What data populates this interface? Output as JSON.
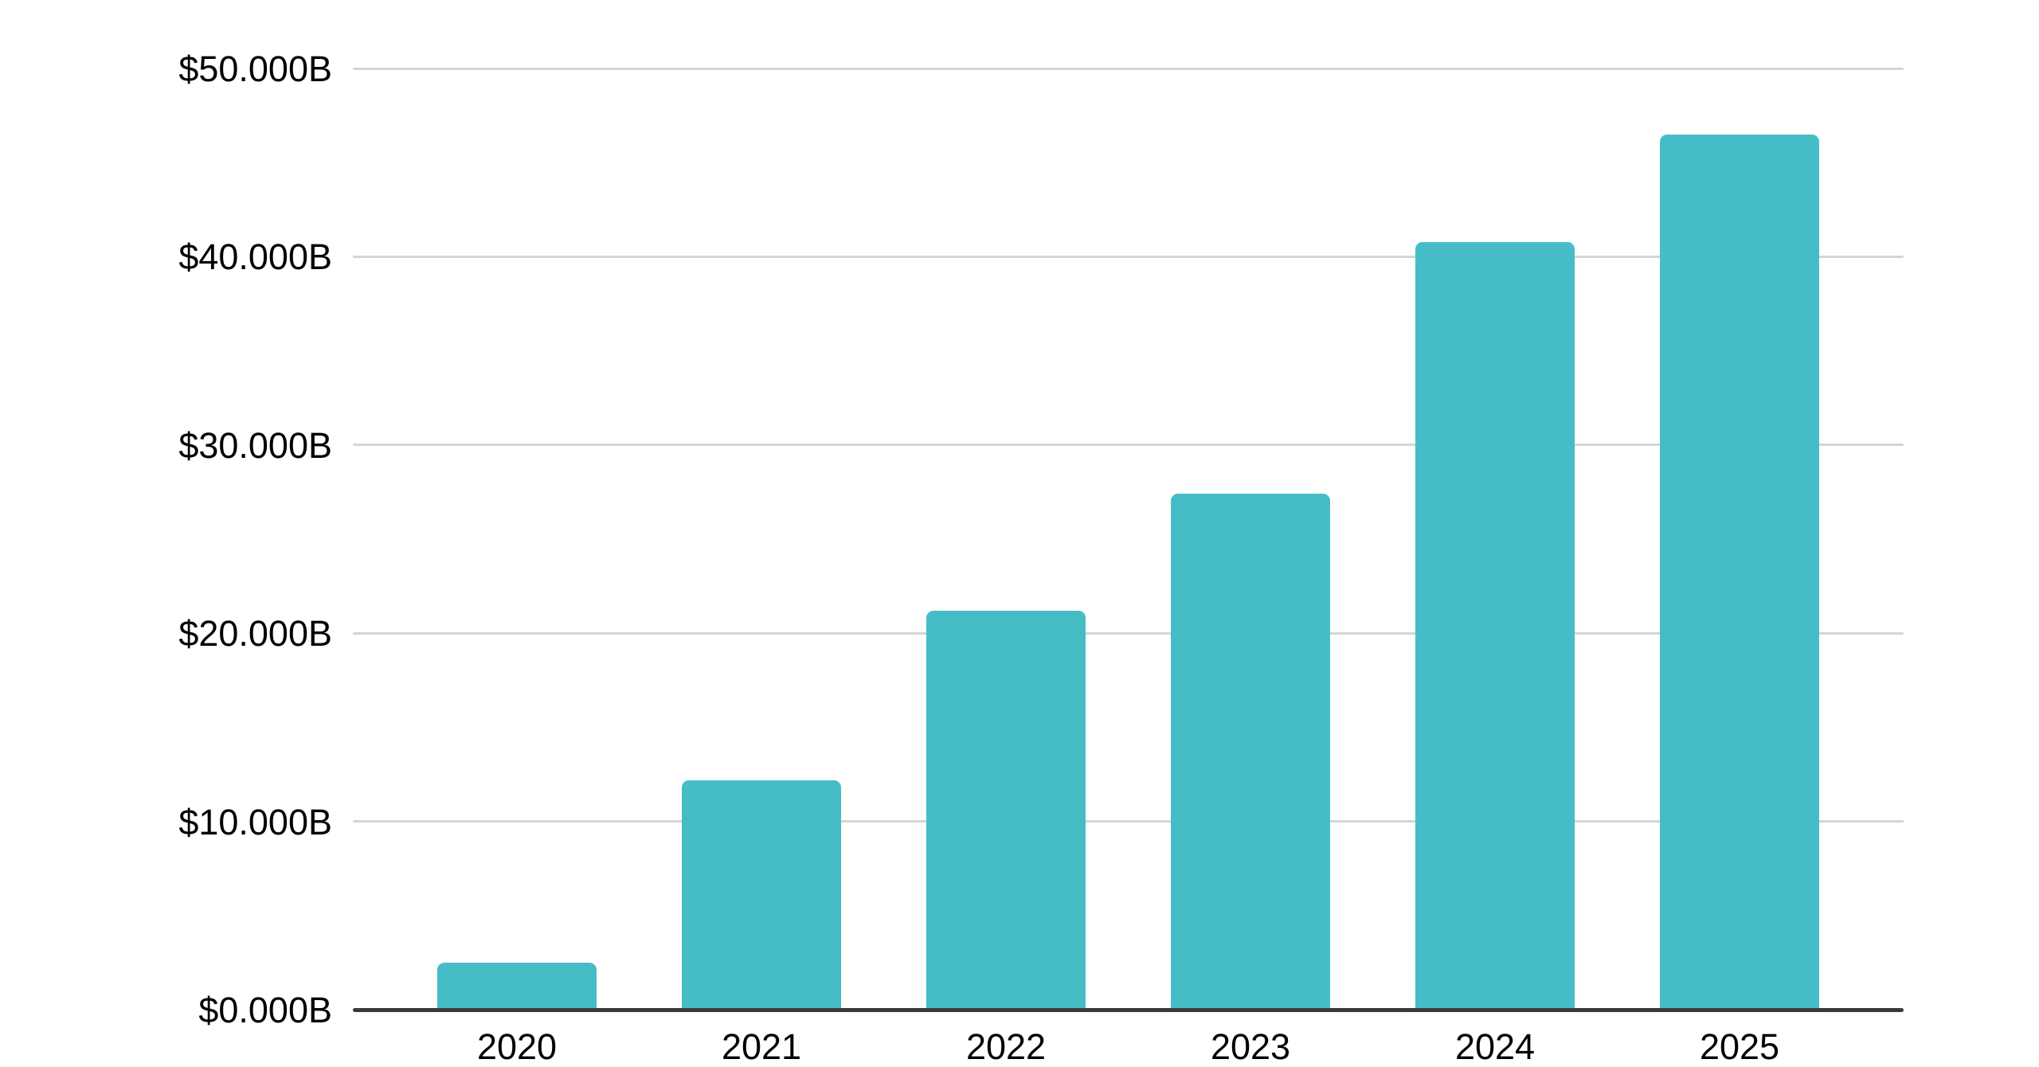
{
  "chart_data": {
    "type": "bar",
    "categories": [
      "2020",
      "2021",
      "2022",
      "2023",
      "2024",
      "2025"
    ],
    "values": [
      2.5,
      12.2,
      21.2,
      27.4,
      40.8,
      46.5
    ],
    "value_unit": "$ billions",
    "y_tick_values": [
      50,
      40,
      30,
      20,
      10,
      0
    ],
    "y_tick_labels": [
      "$50.000B",
      "$40.000B",
      "$30.000B",
      "$20.000B",
      "$10.000B",
      "$0.000B"
    ],
    "ylim": [
      0,
      50
    ],
    "grid": true,
    "legend": "none",
    "bar_color": "#46bdc6",
    "gridline_color": "#d5d5d5",
    "axis_line_color": "#3a3a3a",
    "text_color": "#000000",
    "background_color": "#ffffff"
  }
}
